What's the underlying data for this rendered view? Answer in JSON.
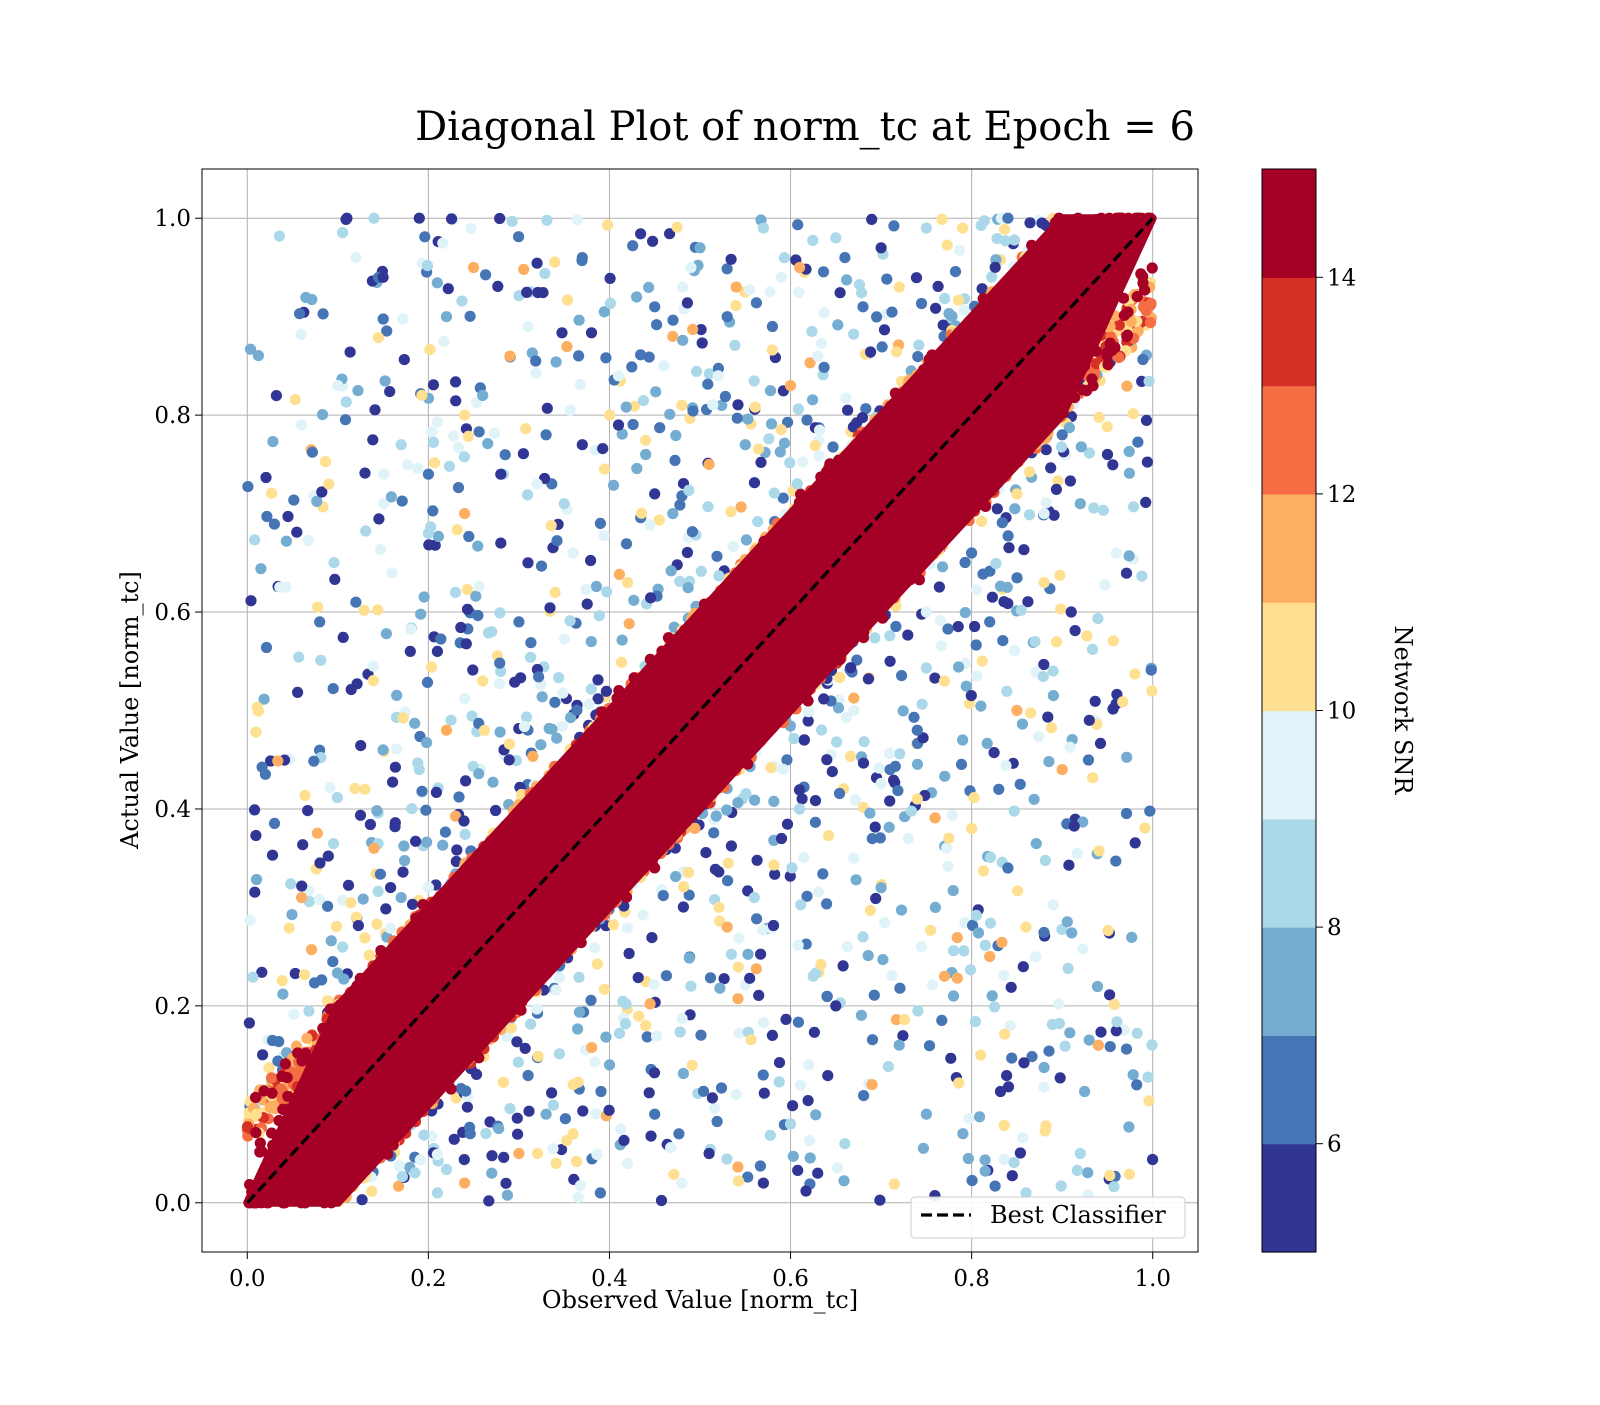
{
  "chart_data": {
    "type": "scatter",
    "title": "Diagonal Plot of norm_tc at Epoch = 6",
    "xlabel": "Observed Value [norm_tc]",
    "ylabel": "Actual Value [norm_tc]",
    "xlim": [
      -0.05,
      1.05
    ],
    "ylim": [
      -0.05,
      1.05
    ],
    "x_ticks": [
      "0.0",
      "0.2",
      "0.4",
      "0.6",
      "0.8",
      "1.0"
    ],
    "y_ticks": [
      "0.0",
      "0.2",
      "0.4",
      "0.6",
      "0.8",
      "1.0"
    ],
    "grid": true,
    "reference_line": {
      "name": "Best Classifier",
      "style": "dashed",
      "color": "#000000",
      "x": [
        0,
        1
      ],
      "y": [
        0,
        1
      ]
    },
    "legend": {
      "placement": "lower-right",
      "entries": [
        "Best Classifier"
      ]
    },
    "colorbar": {
      "label": "Network SNR",
      "range": [
        5,
        15
      ],
      "ticks": [
        "6",
        "8",
        "10",
        "12",
        "14"
      ],
      "tick_values": [
        6,
        8,
        10,
        12,
        14
      ],
      "levels": 10,
      "colors": [
        "#313695",
        "#4575b4",
        "#74add1",
        "#abd9e9",
        "#e0f3f8",
        "#fee090",
        "#fdae61",
        "#f46d43",
        "#d73027",
        "#a50026"
      ],
      "colormap": "RdYlBu_r (10 discrete levels)"
    },
    "series": [
      {
        "description": "dense high-SNR core",
        "snr_range": [
          14,
          15
        ],
        "x_range": [
          0,
          1
        ],
        "band_halfwidth": 0.1
      },
      {
        "description": "scattered low-SNR outliers",
        "snr_range": [
          5,
          13
        ],
        "x_range": [
          0,
          1
        ],
        "points": [
          [
            0.11,
            1.0
          ],
          [
            0.14,
            1.0
          ],
          [
            0.19,
            1.0
          ],
          [
            0.12,
            0.96
          ],
          [
            0.15,
            0.94
          ],
          [
            0.06,
            0.79
          ],
          [
            0.08,
            0.59
          ],
          [
            0.1,
            0.83
          ],
          [
            0.12,
            0.61
          ],
          [
            0.09,
            0.73
          ],
          [
            0.15,
            0.46
          ],
          [
            0.13,
            0.42
          ],
          [
            0.22,
            0.9
          ],
          [
            0.25,
            0.95
          ],
          [
            0.26,
            0.82
          ],
          [
            0.24,
            0.7
          ],
          [
            0.2,
            0.68
          ],
          [
            0.29,
            0.86
          ],
          [
            0.17,
            0.77
          ],
          [
            0.21,
            0.56
          ],
          [
            0.16,
            0.64
          ],
          [
            0.28,
            0.74
          ],
          [
            0.31,
            0.89
          ],
          [
            0.33,
            0.78
          ],
          [
            0.36,
            0.66
          ],
          [
            0.3,
            0.59
          ],
          [
            0.26,
            0.53
          ],
          [
            0.37,
            0.96
          ],
          [
            0.4,
            0.8
          ],
          [
            0.43,
            0.92
          ],
          [
            0.47,
            0.88
          ],
          [
            0.5,
            0.97
          ],
          [
            0.54,
            0.93
          ],
          [
            0.57,
            0.99
          ],
          [
            0.61,
            0.95
          ],
          [
            0.65,
            0.98
          ],
          [
            0.7,
            0.97
          ],
          [
            0.75,
            0.99
          ],
          [
            0.45,
            0.72
          ],
          [
            0.52,
            0.84
          ],
          [
            0.58,
            0.89
          ],
          [
            0.63,
            0.86
          ],
          [
            0.68,
            0.91
          ],
          [
            0.72,
            0.93
          ],
          [
            0.39,
            0.69
          ],
          [
            0.34,
            0.62
          ],
          [
            0.44,
            0.76
          ],
          [
            0.48,
            0.81
          ],
          [
            0.55,
            0.77
          ],
          [
            0.6,
            0.83
          ],
          [
            0.92,
            0.05
          ],
          [
            0.94,
            0.16
          ],
          [
            0.86,
            0.01
          ],
          [
            0.93,
            0.49
          ],
          [
            0.89,
            0.54
          ],
          [
            0.91,
            0.6
          ],
          [
            0.96,
            0.66
          ],
          [
            0.95,
            0.76
          ],
          [
            0.88,
            0.7
          ],
          [
            0.83,
            0.42
          ],
          [
            0.86,
            0.28
          ],
          [
            0.84,
            0.34
          ],
          [
            0.8,
            0.38
          ],
          [
            0.78,
            0.21
          ],
          [
            0.81,
            0.15
          ],
          [
            0.75,
            0.09
          ],
          [
            0.77,
            0.23
          ],
          [
            0.72,
            0.16
          ],
          [
            0.69,
            0.12
          ],
          [
            0.66,
            0.06
          ],
          [
            0.63,
            0.03
          ],
          [
            0.6,
            0.08
          ],
          [
            0.57,
            0.02
          ],
          [
            0.54,
            0.11
          ],
          [
            0.51,
            0.05
          ],
          [
            0.48,
            0.02
          ],
          [
            0.45,
            0.09
          ],
          [
            0.42,
            0.04
          ],
          [
            0.39,
            0.01
          ],
          [
            0.36,
            0.07
          ],
          [
            0.7,
            0.32
          ],
          [
            0.74,
            0.41
          ],
          [
            0.76,
            0.3
          ],
          [
            0.82,
            0.25
          ],
          [
            0.79,
            0.47
          ],
          [
            0.85,
            0.5
          ],
          [
            0.87,
            0.57
          ],
          [
            0.9,
            0.44
          ],
          [
            0.68,
            0.27
          ],
          [
            0.65,
            0.2
          ],
          [
            0.62,
            0.14
          ],
          [
            0.58,
            0.17
          ],
          [
            0.73,
            0.37
          ],
          [
            0.71,
            0.44
          ],
          [
            0.67,
            0.35
          ],
          [
            0.82,
            0.59
          ],
          [
            0.77,
            0.53
          ],
          [
            0.74,
            0.48
          ],
          [
            0.88,
            0.63
          ],
          [
            0.92,
            0.71
          ],
          [
            0.14,
            0.36
          ],
          [
            0.17,
            0.31
          ],
          [
            0.06,
            0.31
          ],
          [
            0.19,
            0.44
          ],
          [
            0.22,
            0.48
          ],
          [
            0.27,
            0.58
          ],
          [
            0.31,
            0.65
          ],
          [
            0.35,
            0.71
          ],
          [
            0.41,
            0.79
          ],
          [
            0.46,
            0.85
          ],
          [
            0.53,
            0.9
          ],
          [
            0.59,
            0.94
          ],
          [
            0.66,
            0.96
          ],
          [
            0.79,
            0.99
          ],
          [
            0.84,
            1.0
          ],
          [
            0.89,
            1.0
          ],
          [
            0.38,
            0.57
          ],
          [
            0.42,
            0.63
          ],
          [
            0.47,
            0.7
          ],
          [
            0.51,
            0.75
          ],
          [
            0.49,
            0.22
          ],
          [
            0.53,
            0.28
          ],
          [
            0.56,
            0.31
          ],
          [
            0.59,
            0.37
          ],
          [
            0.61,
            0.4
          ],
          [
            0.64,
            0.45
          ],
          [
            0.67,
            0.5
          ],
          [
            0.71,
            0.55
          ],
          [
            0.75,
            0.6
          ],
          [
            0.8,
            0.66
          ],
          [
            0.85,
            0.72
          ],
          [
            0.9,
            0.78
          ],
          [
            0.44,
            0.18
          ],
          [
            0.4,
            0.14
          ],
          [
            0.36,
            0.12
          ],
          [
            0.33,
            0.09
          ],
          [
            0.3,
            0.05
          ],
          [
            0.27,
            0.03
          ],
          [
            0.24,
            0.02
          ],
          [
            0.21,
            0.01
          ],
          [
            0.18,
            0.56
          ],
          [
            0.23,
            0.62
          ],
          [
            0.28,
            0.67
          ],
          [
            0.32,
            0.73
          ],
          [
            0.37,
            0.77
          ],
          [
            0.41,
            0.84
          ],
          [
            0.45,
            0.91
          ],
          [
            0.49,
            0.95
          ],
          [
            0.2,
            0.74
          ],
          [
            0.24,
            0.8
          ]
        ]
      }
    ]
  }
}
